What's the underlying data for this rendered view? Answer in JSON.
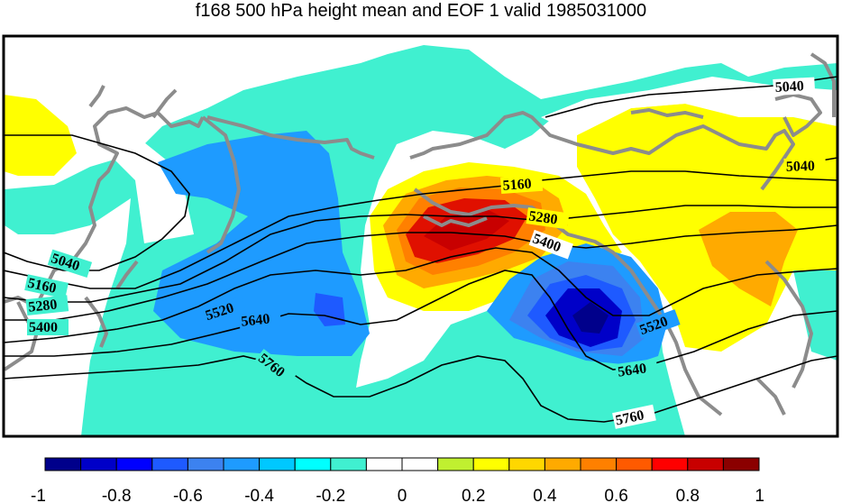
{
  "title": "f168 500 hPa height mean and EOF 1 valid 1985031000",
  "contour_labels": {
    "c5040a": "5040",
    "c5040b": "5040",
    "c5040c": "5040",
    "c5160a": "5160",
    "c5160b": "5160",
    "c5280a": "5280",
    "c5280b": "5280",
    "c5400a": "5400",
    "c5400b": "5400",
    "c5520a": "5520",
    "c5520b": "5520",
    "c5640a": "5640",
    "c5640b": "5640",
    "c5760a": "5760",
    "c5760b": "5760"
  },
  "colorbar": {
    "tick_labels": [
      "-1",
      "-0.8",
      "-0.6",
      "-0.4",
      "-0.2",
      "0",
      "0.2",
      "0.4",
      "0.6",
      "0.8",
      "1"
    ],
    "colors": [
      "#00008b",
      "#0000c8",
      "#0000ff",
      "#1e5aff",
      "#3c82f0",
      "#1e9bff",
      "#00c8ff",
      "#00ffff",
      "#40f0d0",
      "#ffffff",
      "#ffffff",
      "#c0f030",
      "#ffff00",
      "#ffd700",
      "#ffaa00",
      "#ff8000",
      "#ff5a00",
      "#ff0000",
      "#c80000",
      "#8b0000"
    ]
  },
  "fill_colors": {
    "cyan": "#40f0d0",
    "lightblue": "#1e9bff",
    "midblue": "#1e5aff",
    "darkblue": "#0000c8",
    "yellow": "#ffff00",
    "orange": "#ffaa00",
    "darkorange": "#ff8000",
    "red": "#e01000",
    "darkred": "#c80000",
    "coast": "#8c8c8c"
  }
}
